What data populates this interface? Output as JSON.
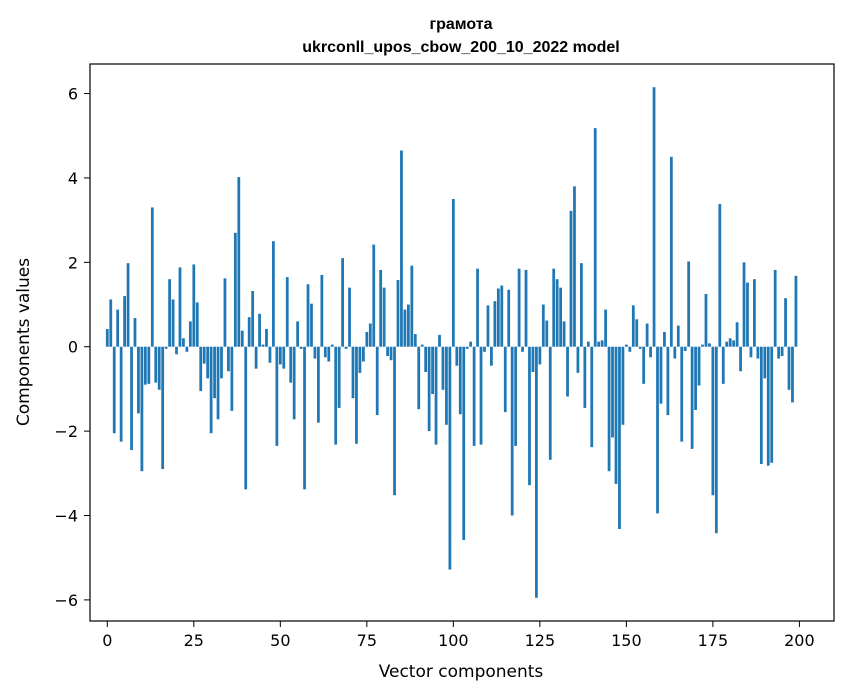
{
  "chart_data": {
    "type": "bar",
    "title_line1": "грамота",
    "title_line2": "ukrconll_upos_cbow_200_10_2022 model",
    "xlabel": "Vector components",
    "ylabel": "Components values",
    "xlim": [
      -5,
      210
    ],
    "ylim": [
      -6.5,
      6.7
    ],
    "x_ticks": [
      0,
      25,
      50,
      75,
      100,
      125,
      150,
      175,
      200
    ],
    "y_ticks": [
      -6,
      -4,
      -2,
      0,
      2,
      4,
      6
    ],
    "y_tick_labels": [
      "−6",
      "−4",
      "−2",
      "0",
      "2",
      "4",
      "6"
    ],
    "bar_color": "#1f77b4",
    "values": [
      0.42,
      1.12,
      -2.05,
      0.88,
      -2.25,
      1.2,
      1.98,
      -2.45,
      0.68,
      -1.58,
      -2.95,
      -0.9,
      -0.88,
      3.3,
      -0.85,
      -1.02,
      -2.9,
      -0.05,
      1.6,
      1.12,
      -0.18,
      1.88,
      0.2,
      -0.12,
      0.6,
      1.95,
      1.05,
      -1.05,
      -0.4,
      -0.75,
      -2.05,
      -1.22,
      -1.72,
      -0.75,
      1.62,
      -0.58,
      -1.52,
      2.7,
      4.02,
      0.38,
      -3.38,
      0.7,
      1.32,
      -0.52,
      0.78,
      0.05,
      0.42,
      -0.38,
      2.5,
      -2.35,
      -0.42,
      -0.52,
      1.65,
      -0.85,
      -1.72,
      0.6,
      -0.05,
      -3.38,
      1.48,
      1.02,
      -0.28,
      -1.8,
      1.7,
      -0.25,
      -0.35,
      0.05,
      -2.32,
      -1.45,
      2.1,
      -0.05,
      1.4,
      -1.22,
      -2.3,
      -0.62,
      -0.35,
      0.35,
      0.55,
      2.42,
      -1.62,
      1.82,
      1.4,
      -0.22,
      -0.32,
      -3.52,
      1.58,
      4.65,
      0.88,
      1.0,
      1.92,
      0.3,
      -1.48,
      0.05,
      -0.6,
      -2.0,
      -1.12,
      -2.32,
      0.28,
      -1.02,
      -1.85,
      -5.28,
      3.5,
      -0.45,
      -1.6,
      -4.58,
      -0.05,
      0.12,
      -2.35,
      1.85,
      -2.32,
      -0.12,
      0.98,
      -0.45,
      1.08,
      1.38,
      1.45,
      -1.55,
      1.35,
      -4.0,
      -2.35,
      1.85,
      -0.12,
      1.82,
      -3.28,
      -0.6,
      -5.95,
      -0.42,
      1.0,
      0.62,
      -2.68,
      1.85,
      1.6,
      1.4,
      0.6,
      -1.18,
      3.22,
      3.8,
      -0.62,
      1.98,
      -1.45,
      0.12,
      -2.38,
      5.18,
      0.12,
      0.15,
      0.88,
      -2.95,
      -2.15,
      -3.25,
      -4.32,
      -1.85,
      0.05,
      -0.12,
      0.98,
      0.65,
      -0.05,
      -0.88,
      0.55,
      -0.25,
      6.15,
      -3.95,
      -1.35,
      0.35,
      -1.62,
      4.5,
      -0.28,
      0.5,
      -2.25,
      -0.1,
      2.02,
      -2.42,
      -1.5,
      -0.92,
      0.05,
      1.25,
      0.08,
      -3.52,
      -4.42,
      3.38,
      -0.88,
      0.12,
      0.2,
      0.15,
      0.58,
      -0.58,
      2.0,
      1.52,
      -0.25,
      1.6,
      -0.28,
      -2.78,
      -0.75,
      -2.82,
      -2.75,
      1.82,
      -0.28,
      -0.22,
      1.15,
      -1.02,
      -1.32,
      1.68
    ]
  }
}
